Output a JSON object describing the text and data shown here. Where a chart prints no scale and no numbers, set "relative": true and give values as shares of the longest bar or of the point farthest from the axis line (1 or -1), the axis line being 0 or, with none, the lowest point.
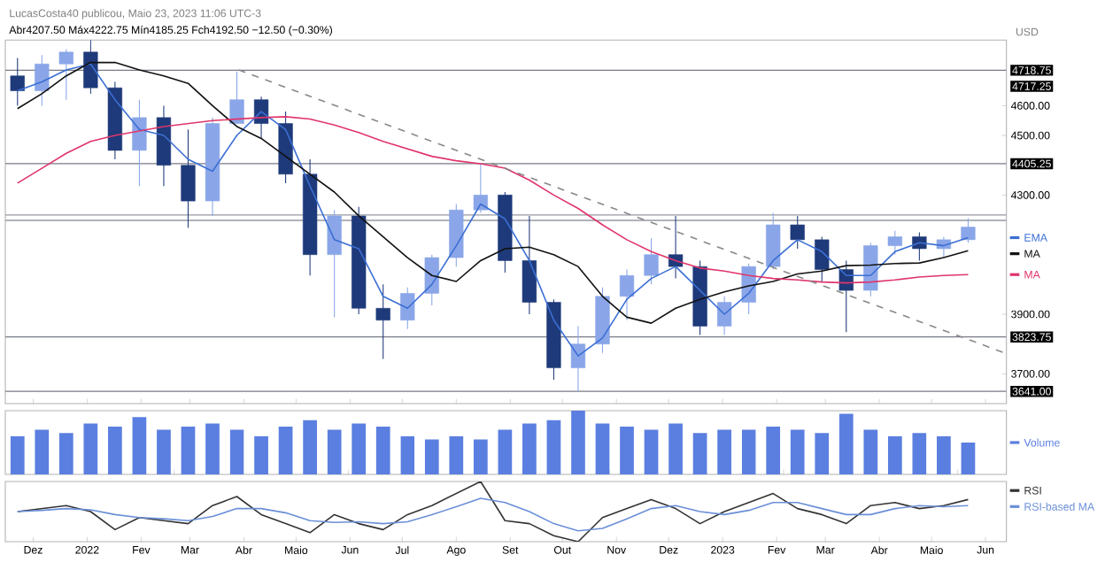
{
  "chart_data": [
    {
      "type": "candlestick",
      "title": "Abr4207.50 Máx4222.75 Mín4185.25 Fch4192.50 −12.50 (−0.30%)",
      "ylabel": "USD",
      "annotations": [
        "LucasCosta40 publicou, Maio 23, 2023 11:06 UTC-3",
        "4717.25"
      ],
      "x": [
        "2021-11-22",
        "2021-12-06",
        "2021-12-20",
        "2022-01-03",
        "2022-01-17",
        "2022-01-31",
        "2022-02-14",
        "2022-02-28",
        "2022-03-14",
        "2022-03-28",
        "2022-04-11",
        "2022-04-25",
        "2022-05-09",
        "2022-05-23",
        "2022-06-06",
        "2022-06-20",
        "2022-07-04",
        "2022-07-18",
        "2022-08-01",
        "2022-08-15",
        "2022-08-29",
        "2022-09-12",
        "2022-09-26",
        "2022-10-10",
        "2022-10-24",
        "2022-11-07",
        "2022-11-21",
        "2022-12-05",
        "2022-12-19",
        "2023-01-02",
        "2023-01-16",
        "2023-01-30",
        "2023-02-13",
        "2023-02-27",
        "2023-03-13",
        "2023-03-27",
        "2023-04-10",
        "2023-04-24",
        "2023-05-08",
        "2023-05-22"
      ],
      "ohlc": [
        [
          4700,
          4760,
          4600,
          4650
        ],
        [
          4650,
          4770,
          4600,
          4740
        ],
        [
          4740,
          4790,
          4620,
          4780
        ],
        [
          4780,
          4820,
          4640,
          4660
        ],
        [
          4660,
          4680,
          4420,
          4450
        ],
        [
          4450,
          4620,
          4330,
          4560
        ],
        [
          4560,
          4600,
          4330,
          4400
        ],
        [
          4400,
          4520,
          4190,
          4280
        ],
        [
          4280,
          4560,
          4230,
          4540
        ],
        [
          4540,
          4715,
          4540,
          4620
        ],
        [
          4620,
          4630,
          4490,
          4540
        ],
        [
          4540,
          4580,
          4340,
          4370
        ],
        [
          4370,
          4420,
          4030,
          4100
        ],
        [
          4100,
          4250,
          3890,
          4230
        ],
        [
          4230,
          4260,
          3900,
          3920
        ],
        [
          3920,
          4000,
          3750,
          3880
        ],
        [
          3880,
          3990,
          3850,
          3970
        ],
        [
          3970,
          4100,
          3930,
          4090
        ],
        [
          4090,
          4270,
          4060,
          4250
        ],
        [
          4250,
          4405,
          4240,
          4300
        ],
        [
          4300,
          4310,
          4040,
          4080
        ],
        [
          4080,
          4230,
          3900,
          3940
        ],
        [
          3940,
          3950,
          3680,
          3720
        ],
        [
          3720,
          3860,
          3641,
          3800
        ],
        [
          3800,
          3990,
          3770,
          3960
        ],
        [
          3960,
          4050,
          3880,
          4030
        ],
        [
          4030,
          4155,
          4000,
          4100
        ],
        [
          4100,
          4230,
          4020,
          4060
        ],
        [
          4060,
          4080,
          3830,
          3860
        ],
        [
          3860,
          3960,
          3830,
          3940
        ],
        [
          3940,
          4070,
          3900,
          4060
        ],
        [
          4060,
          4240,
          4050,
          4200
        ],
        [
          4200,
          4230,
          4120,
          4150
        ],
        [
          4150,
          4160,
          4010,
          4050
        ],
        [
          4050,
          4080,
          3840,
          3980
        ],
        [
          3980,
          4140,
          3960,
          4130
        ],
        [
          4130,
          4180,
          4100,
          4160
        ],
        [
          4160,
          4175,
          4080,
          4120
        ],
        [
          4120,
          4160,
          4090,
          4150
        ],
        [
          4150,
          4222.75,
          4140,
          4192.5
        ]
      ],
      "colors": [
        "#1f3a7a",
        "#8aa6e8",
        "#8aa6e8",
        "#1f3a7a",
        "#1f3a7a",
        "#8aa6e8",
        "#1f3a7a",
        "#1f3a7a",
        "#8aa6e8",
        "#8aa6e8",
        "#1f3a7a",
        "#1f3a7a",
        "#1f3a7a",
        "#8aa6e8",
        "#1f3a7a",
        "#1f3a7a",
        "#8aa6e8",
        "#8aa6e8",
        "#8aa6e8",
        "#8aa6e8",
        "#1f3a7a",
        "#1f3a7a",
        "#1f3a7a",
        "#8aa6e8",
        "#8aa6e8",
        "#8aa6e8",
        "#8aa6e8",
        "#1f3a7a",
        "#1f3a7a",
        "#8aa6e8",
        "#8aa6e8",
        "#8aa6e8",
        "#1f3a7a",
        "#1f3a7a",
        "#1f3a7a",
        "#8aa6e8",
        "#8aa6e8",
        "#1f3a7a",
        "#8aa6e8",
        "#8aa6e8"
      ],
      "series": [
        {
          "name": "EMA",
          "type": "line",
          "color": "#3b6fd4",
          "values": [
            4650,
            4680,
            4720,
            4740,
            4620,
            4520,
            4500,
            4420,
            4380,
            4500,
            4580,
            4520,
            4330,
            4150,
            4120,
            3960,
            3920,
            4000,
            4130,
            4270,
            4220,
            4080,
            3880,
            3760,
            3820,
            3950,
            4020,
            4060,
            3980,
            3900,
            3970,
            4080,
            4150,
            4110,
            4030,
            4030,
            4110,
            4140,
            4130,
            4157
          ]
        },
        {
          "name": "MA",
          "type": "line",
          "color": "#111111",
          "values": [
            4590,
            4640,
            4700,
            4745,
            4745,
            4720,
            4700,
            4675,
            4600,
            4530,
            4490,
            4430,
            4370,
            4310,
            4230,
            4160,
            4090,
            4030,
            4010,
            4080,
            4120,
            4125,
            4100,
            4060,
            3960,
            3890,
            3870,
            3920,
            3950,
            3975,
            3995,
            4010,
            4035,
            4045,
            4063,
            4065,
            4070,
            4072,
            4090,
            4113
          ]
        },
        {
          "name": "MA",
          "type": "line",
          "color": "#e0356b",
          "values": [
            4340,
            4390,
            4440,
            4480,
            4500,
            4515,
            4530,
            4540,
            4550,
            4555,
            4560,
            4563,
            4555,
            4535,
            4510,
            4480,
            4455,
            4430,
            4415,
            4405,
            4390,
            4350,
            4300,
            4255,
            4200,
            4150,
            4110,
            4080,
            4055,
            4045,
            4030,
            4020,
            4015,
            4008,
            4005,
            4008,
            4015,
            4025,
            4030,
            4033
          ]
        },
        {
          "type": "line",
          "color": "#888888",
          "line_style": "dashed",
          "x": [
            "2022-03-29",
            "2023-06-12"
          ],
          "values": [
            4720,
            3770
          ]
        }
      ],
      "ref_lines": [
        {
          "axis": "y",
          "value": 4718.75,
          "label": "4718.75",
          "color": "#787b86"
        },
        {
          "axis": "y",
          "value": 4405.25,
          "label": "4405.25",
          "color": "#787b86"
        },
        {
          "axis": "y",
          "value": 4233,
          "color": "#9598a1"
        },
        {
          "axis": "y",
          "value": 4215,
          "color": "#9598a1"
        },
        {
          "axis": "y",
          "value": 3823.75,
          "label": "3823.75",
          "color": "#787b86"
        },
        {
          "axis": "y",
          "value": 3641,
          "label": "3641.00",
          "color": "#787b86"
        }
      ],
      "xlim": [
        "2021-11-15",
        "2023-06-13"
      ],
      "xticks": [
        {
          "value": "2021-12-01",
          "label": null
        },
        {
          "value": "2022-01-01",
          "label": null
        },
        {
          "value": "2022-02-01",
          "label": null
        },
        {
          "value": "2022-03-01",
          "label": null
        },
        {
          "value": "2022-04-01",
          "label": null
        },
        {
          "value": "2022-05-01",
          "label": null
        },
        {
          "value": "2022-06-01",
          "label": null
        },
        {
          "value": "2022-07-01",
          "label": null
        },
        {
          "value": "2022-08-01",
          "label": null
        },
        {
          "value": "2022-09-01",
          "label": null
        },
        {
          "value": "2022-10-01",
          "label": null
        },
        {
          "value": "2022-11-01",
          "label": null
        },
        {
          "value": "2022-12-01",
          "label": null
        },
        {
          "value": "2023-01-01",
          "label": null
        },
        {
          "value": "2023-02-01",
          "label": null
        },
        {
          "value": "2023-03-01",
          "label": null
        },
        {
          "value": "2023-04-01",
          "label": null
        },
        {
          "value": "2023-05-01",
          "label": null
        },
        {
          "value": "2023-06-01",
          "label": null
        }
      ],
      "ylim": [
        3600,
        4820
      ],
      "yticks": [
        {
          "value": 3700,
          "label": "3700.00"
        },
        {
          "value": 3900,
          "label": "3900.00"
        },
        {
          "value": 4300,
          "label": "4300.00"
        },
        {
          "value": 4500,
          "label": "4500.00"
        },
        {
          "value": 4600,
          "label": "4600.00"
        }
      ],
      "tick_labels": "y"
    },
    {
      "type": "bar",
      "relative": true,
      "tick_labels": false,
      "x": [
        "2021-11-22",
        "2021-12-06",
        "2021-12-20",
        "2022-01-03",
        "2022-01-17",
        "2022-01-31",
        "2022-02-14",
        "2022-02-28",
        "2022-03-14",
        "2022-03-28",
        "2022-04-11",
        "2022-04-25",
        "2022-05-09",
        "2022-05-23",
        "2022-06-06",
        "2022-06-20",
        "2022-07-04",
        "2022-07-18",
        "2022-08-01",
        "2022-08-15",
        "2022-08-29",
        "2022-09-12",
        "2022-09-26",
        "2022-10-10",
        "2022-10-24",
        "2022-11-07",
        "2022-11-21",
        "2022-12-05",
        "2022-12-19",
        "2023-01-02",
        "2023-01-16",
        "2023-01-30",
        "2023-02-13",
        "2023-02-27",
        "2023-03-13",
        "2023-03-27",
        "2023-04-10",
        "2023-04-24",
        "2023-05-08",
        "2023-05-22"
      ],
      "series": [
        {
          "name": "Volume",
          "color": "#5b7fe0",
          "values": [
            0.6,
            0.7,
            0.65,
            0.8,
            0.75,
            0.9,
            0.7,
            0.75,
            0.8,
            0.7,
            0.6,
            0.75,
            0.85,
            0.7,
            0.8,
            0.75,
            0.6,
            0.55,
            0.6,
            0.55,
            0.7,
            0.8,
            0.85,
            1.0,
            0.8,
            0.75,
            0.7,
            0.8,
            0.65,
            0.7,
            0.7,
            0.75,
            0.7,
            0.65,
            0.95,
            0.7,
            0.6,
            0.65,
            0.6,
            0.5
          ]
        }
      ],
      "xlim": [
        "2021-11-15",
        "2023-06-13"
      ]
    },
    {
      "type": "line",
      "relative": true,
      "tick_labels": "x",
      "legend": "right",
      "x": [
        "2021-11-22",
        "2021-12-06",
        "2021-12-20",
        "2022-01-03",
        "2022-01-17",
        "2022-01-31",
        "2022-02-14",
        "2022-02-28",
        "2022-03-14",
        "2022-03-28",
        "2022-04-11",
        "2022-04-25",
        "2022-05-09",
        "2022-05-23",
        "2022-06-06",
        "2022-06-20",
        "2022-07-04",
        "2022-07-18",
        "2022-08-01",
        "2022-08-15",
        "2022-08-29",
        "2022-09-12",
        "2022-09-26",
        "2022-10-10",
        "2022-10-24",
        "2022-11-07",
        "2022-11-21",
        "2022-12-05",
        "2022-12-19",
        "2023-01-02",
        "2023-01-16",
        "2023-01-30",
        "2023-02-13",
        "2023-02-27",
        "2023-03-13",
        "2023-03-27",
        "2023-04-10",
        "2023-04-24",
        "2023-05-08",
        "2023-05-22"
      ],
      "series": [
        {
          "name": "RSI",
          "color": "#333333",
          "values": [
            0.5,
            0.55,
            0.6,
            0.5,
            0.2,
            0.4,
            0.35,
            0.3,
            0.6,
            0.75,
            0.45,
            0.3,
            0.15,
            0.45,
            0.3,
            0.2,
            0.45,
            0.6,
            0.8,
            1.0,
            0.35,
            0.3,
            0.1,
            0.0,
            0.4,
            0.55,
            0.7,
            0.55,
            0.3,
            0.5,
            0.65,
            0.8,
            0.55,
            0.45,
            0.3,
            0.6,
            0.65,
            0.55,
            0.6,
            0.7
          ]
        },
        {
          "name": "RSI-based MA",
          "color": "#6a8fd8",
          "values": [
            0.5,
            0.52,
            0.55,
            0.53,
            0.45,
            0.4,
            0.38,
            0.35,
            0.42,
            0.55,
            0.55,
            0.48,
            0.35,
            0.32,
            0.33,
            0.3,
            0.33,
            0.45,
            0.58,
            0.72,
            0.65,
            0.5,
            0.3,
            0.18,
            0.22,
            0.38,
            0.55,
            0.6,
            0.5,
            0.45,
            0.52,
            0.65,
            0.65,
            0.55,
            0.45,
            0.45,
            0.55,
            0.6,
            0.58,
            0.6
          ]
        }
      ],
      "xlim": [
        "2021-11-15",
        "2023-06-13"
      ],
      "xticks": [
        {
          "value": "2021-12-01",
          "label": "Dez"
        },
        {
          "value": "2022-01-01",
          "label": "2022"
        },
        {
          "value": "2022-02-01",
          "label": "Fev"
        },
        {
          "value": "2022-03-01",
          "label": "Mar"
        },
        {
          "value": "2022-04-01",
          "label": "Abr"
        },
        {
          "value": "2022-05-01",
          "label": "Maio"
        },
        {
          "value": "2022-06-01",
          "label": "Jun"
        },
        {
          "value": "2022-07-01",
          "label": "Jul"
        },
        {
          "value": "2022-08-01",
          "label": "Ago"
        },
        {
          "value": "2022-09-01",
          "label": "Set"
        },
        {
          "value": "2022-10-01",
          "label": "Out"
        },
        {
          "value": "2022-11-01",
          "label": "Nov"
        },
        {
          "value": "2022-12-01",
          "label": "Dez"
        },
        {
          "value": "2023-01-01",
          "label": "2023"
        },
        {
          "value": "2023-02-01",
          "label": "Fev"
        },
        {
          "value": "2023-03-01",
          "label": "Mar"
        },
        {
          "value": "2023-04-01",
          "label": "Abr"
        },
        {
          "value": "2023-05-01",
          "label": "Maio"
        },
        {
          "value": "2023-06-01",
          "label": "Jun"
        }
      ]
    }
  ]
}
